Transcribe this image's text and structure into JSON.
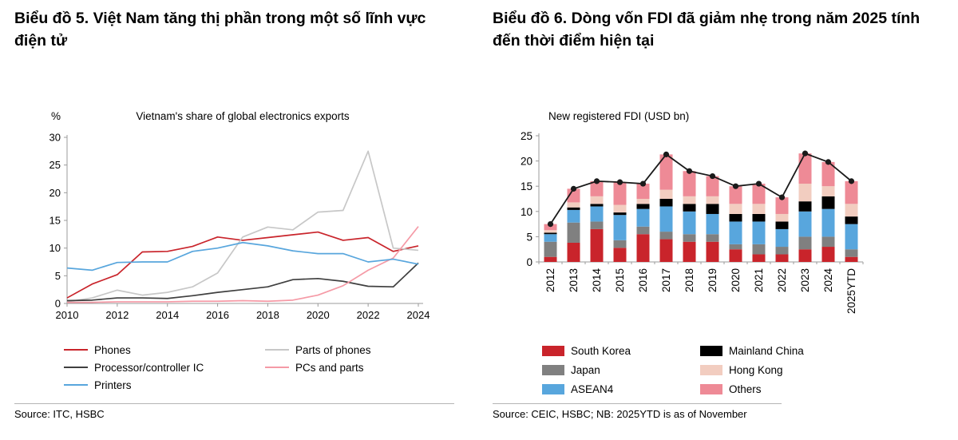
{
  "page": {
    "heading_left": "Biểu đồ 5. Việt Nam tăng thị phần trong một số lĩnh vực điện tử",
    "heading_right": "Biểu đồ 6. Dòng vốn FDI đã giảm nhẹ trong năm 2025 tính đến thời điểm hiện tại",
    "source_left": "Source: ITC, HSBC",
    "source_right": "Source: CEIC, HSBC; NB: 2025YTD is as of November"
  },
  "chart_data": [
    {
      "type": "line",
      "title": "Vietnam's share of global electronics exports",
      "ylabel": "%",
      "ylim": [
        0,
        30
      ],
      "yticks": [
        0,
        5,
        10,
        15,
        20,
        25,
        30
      ],
      "x": [
        2010,
        2011,
        2012,
        2013,
        2014,
        2015,
        2016,
        2017,
        2018,
        2019,
        2020,
        2021,
        2022,
        2023,
        2024
      ],
      "xticks": [
        2010,
        2012,
        2014,
        2016,
        2018,
        2020,
        2022,
        2024
      ],
      "grid": false,
      "legend_position": "bottom",
      "legend_columns": [
        [
          0,
          2,
          4
        ],
        [
          1,
          3
        ]
      ],
      "series": [
        {
          "name": "Phones",
          "color": "#c9242b",
          "values": [
            1.0,
            3.5,
            5.2,
            9.3,
            9.4,
            10.3,
            12.0,
            11.4,
            11.9,
            12.4,
            12.9,
            11.4,
            11.9,
            9.4,
            10.4
          ]
        },
        {
          "name": "Parts of phones",
          "color": "#c7c7c7",
          "values": [
            0.3,
            1.0,
            2.4,
            1.5,
            2.0,
            3.0,
            5.5,
            12.0,
            13.8,
            13.3,
            16.5,
            16.8,
            27.5,
            10.0,
            9.6
          ]
        },
        {
          "name": "Processor/controller IC",
          "color": "#3f3f3f",
          "values": [
            0.5,
            0.6,
            1.0,
            1.0,
            0.9,
            1.4,
            2.0,
            2.5,
            3.0,
            4.3,
            4.5,
            4.0,
            3.1,
            3.0,
            7.3
          ]
        },
        {
          "name": "PCs and parts",
          "color": "#f59aa6",
          "values": [
            0.2,
            0.2,
            0.3,
            0.3,
            0.3,
            0.4,
            0.4,
            0.5,
            0.4,
            0.6,
            1.5,
            3.2,
            6.0,
            8.2,
            13.9
          ]
        },
        {
          "name": "Printers",
          "color": "#58a6dd",
          "values": [
            6.4,
            6.0,
            7.4,
            7.5,
            7.5,
            9.4,
            10.0,
            11.0,
            10.4,
            9.5,
            9.0,
            9.0,
            7.5,
            8.0,
            7.1
          ]
        }
      ]
    },
    {
      "type": "bar",
      "subtype": "stacked_bar_with_total_line",
      "title": "New registered FDI  (USD bn)",
      "ylim": [
        0,
        25
      ],
      "yticks": [
        0,
        5,
        10,
        15,
        20,
        25
      ],
      "grid": false,
      "legend_position": "bottom",
      "legend_columns": [
        [
          0,
          1,
          2
        ],
        [
          3,
          4,
          5
        ]
      ],
      "categories": [
        "2012",
        "2013",
        "2014",
        "2015",
        "2016",
        "2017",
        "2018",
        "2019",
        "2020",
        "2021",
        "2022",
        "2023",
        "2024",
        "2025YTD"
      ],
      "series": [
        {
          "name": "South Korea",
          "color": "#c9242b",
          "values": [
            1.0,
            3.8,
            6.5,
            2.8,
            5.5,
            4.5,
            4.0,
            4.0,
            2.5,
            1.5,
            1.5,
            2.5,
            3.0,
            1.0
          ]
        },
        {
          "name": "Japan",
          "color": "#808080",
          "values": [
            3.0,
            4.0,
            1.5,
            1.5,
            1.5,
            1.5,
            1.5,
            1.5,
            1.0,
            2.0,
            1.5,
            2.5,
            2.0,
            1.5
          ]
        },
        {
          "name": "ASEAN4",
          "color": "#58a6dd",
          "values": [
            1.5,
            2.5,
            3.0,
            5.0,
            3.5,
            5.0,
            4.5,
            4.0,
            4.5,
            4.5,
            3.5,
            5.0,
            5.5,
            5.0
          ]
        },
        {
          "name": "Mainland China",
          "color": "#000000",
          "values": [
            0.3,
            0.5,
            0.5,
            0.5,
            1.0,
            1.5,
            1.5,
            2.0,
            1.5,
            1.5,
            1.5,
            2.0,
            2.5,
            1.5
          ]
        },
        {
          "name": "Hong Kong",
          "color": "#f2cdc0",
          "values": [
            0.5,
            1.0,
            1.5,
            1.5,
            1.0,
            1.8,
            1.5,
            1.5,
            2.0,
            2.0,
            1.5,
            3.5,
            2.0,
            2.5
          ]
        },
        {
          "name": "Others",
          "color": "#ee8a96",
          "values": [
            1.2,
            2.7,
            3.0,
            4.5,
            3.0,
            7.0,
            5.0,
            4.0,
            3.5,
            4.0,
            3.3,
            6.0,
            4.8,
            4.5
          ]
        }
      ],
      "total_line": {
        "name": "Total",
        "color": "#1a1a1a",
        "values": [
          7.5,
          14.5,
          16.0,
          15.8,
          15.5,
          21.3,
          18.0,
          17.0,
          15.0,
          15.5,
          12.8,
          21.5,
          19.8,
          16.0
        ]
      }
    }
  ]
}
